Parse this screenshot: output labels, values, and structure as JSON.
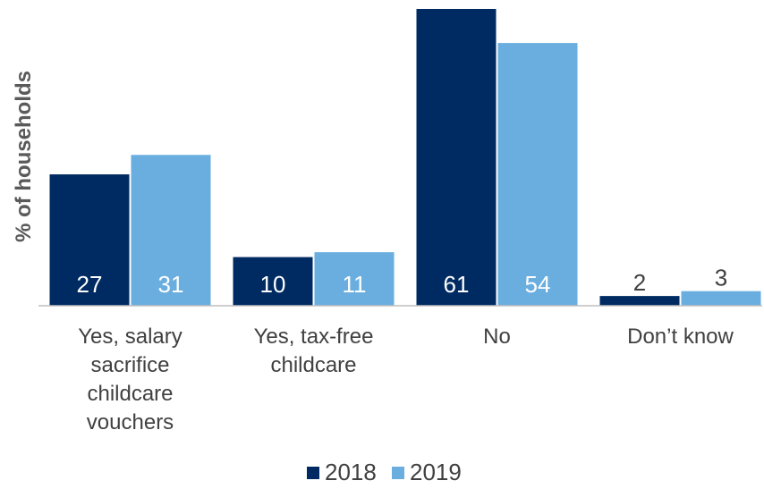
{
  "chart_data": {
    "type": "bar",
    "ylabel": "% of households",
    "categories": [
      [
        "Yes, salary",
        "sacrifice",
        "childcare",
        "vouchers"
      ],
      [
        "Yes, tax-free",
        "childcare"
      ],
      [
        "No"
      ],
      [
        "Don’t know"
      ]
    ],
    "series": [
      {
        "name": "2018",
        "color": "#002b62",
        "values": [
          27,
          10,
          61,
          2
        ]
      },
      {
        "name": "2019",
        "color": "#6aaedf",
        "values": [
          31,
          11,
          54,
          3
        ]
      }
    ],
    "ylim": [
      0,
      61
    ],
    "grid": false,
    "legend": "bottom",
    "data_label_colors": {
      "inside": "#ffffff",
      "outside": "#404040"
    }
  }
}
